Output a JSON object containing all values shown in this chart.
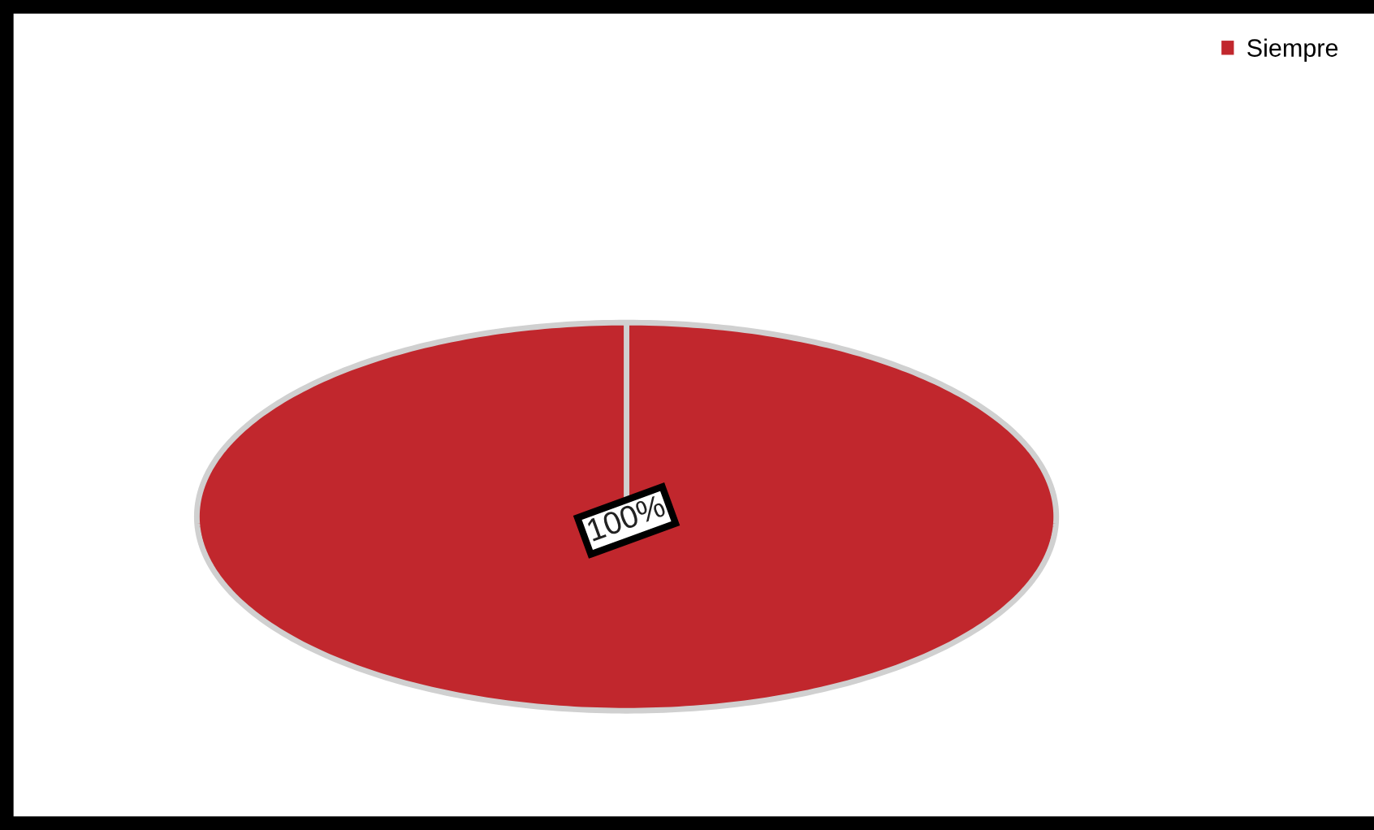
{
  "chart_data": {
    "type": "pie",
    "categories": [
      "Siempre"
    ],
    "values": [
      100
    ],
    "colors": [
      "#c1272d"
    ],
    "value_labels": [
      "100%"
    ],
    "legend": "top right"
  }
}
